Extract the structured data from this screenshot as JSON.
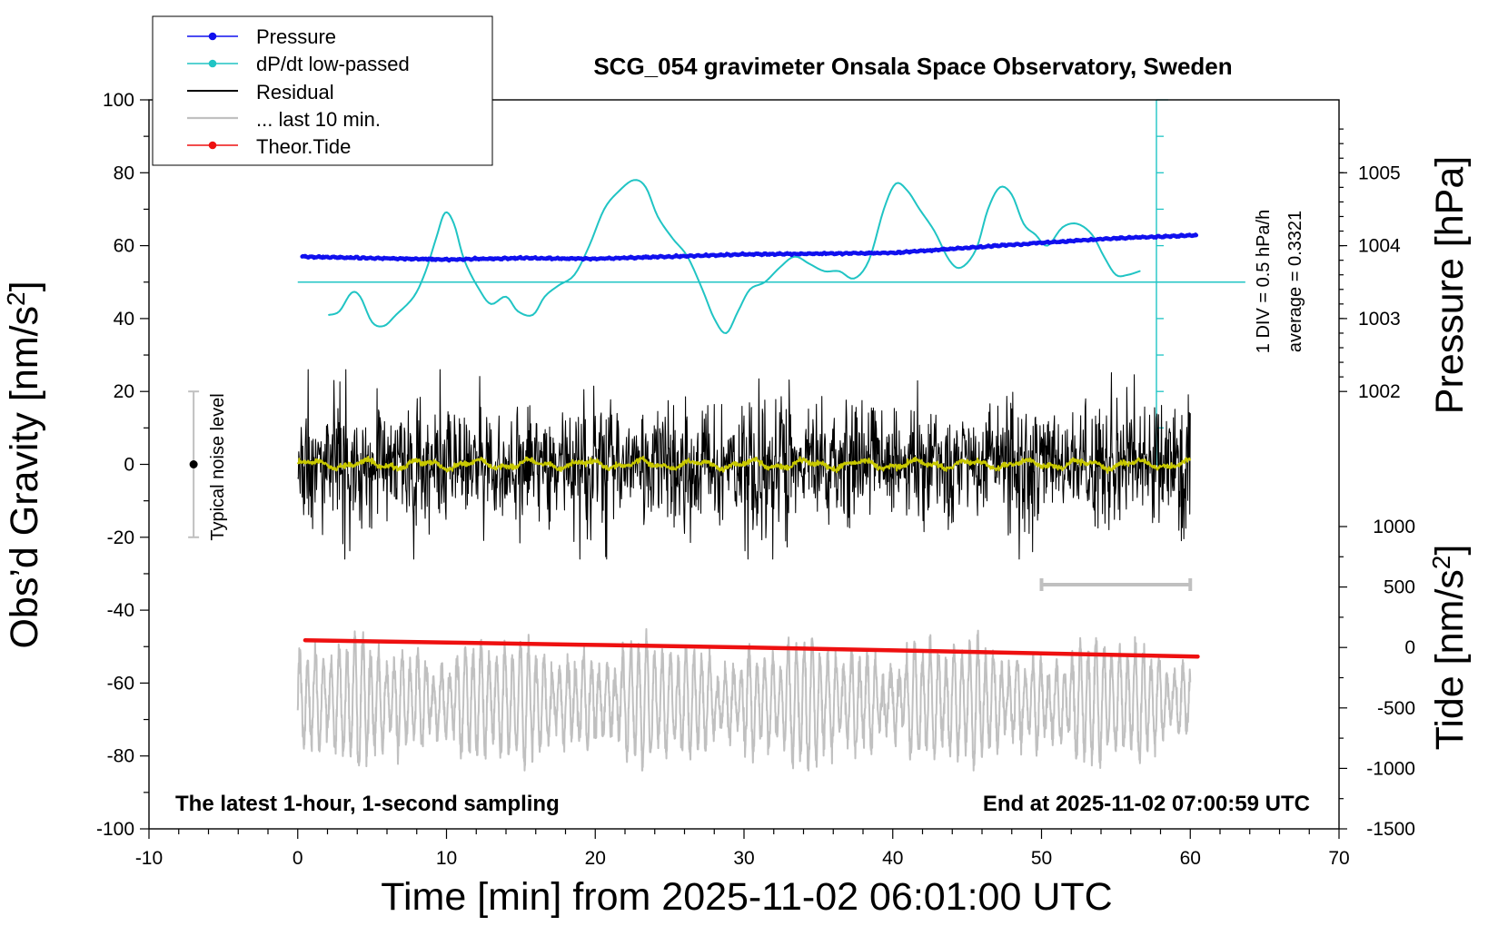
{
  "chart_data": {
    "type": "line",
    "title": "SCG_054 gravimeter Onsala Space Observatory, Sweden",
    "xlabel": "Time [min] from 2025-11-02 06:01:00 UTC",
    "ylabel_left": "Obs’d Gravity [nm/s²]",
    "ylabel_pressure": "Pressure [hPa]",
    "ylabel_tide": "Tide [nm/s²]",
    "x_range": [
      -10,
      70
    ],
    "x_ticks": [
      -10,
      0,
      10,
      20,
      30,
      40,
      50,
      60,
      70
    ],
    "gravity_range": [
      -100,
      100
    ],
    "gravity_ticks": [
      -100,
      -80,
      -60,
      -40,
      -20,
      0,
      20,
      40,
      60,
      80,
      100
    ],
    "pressure_ticks": [
      1002,
      1003,
      1004,
      1005
    ],
    "tide_range": [
      -1500,
      1000
    ],
    "tide_ticks": [
      -1500,
      -1000,
      -500,
      0,
      500,
      1000
    ],
    "footer_left": "The latest 1-hour, 1-second sampling",
    "footer_right": "End at 2025-11-02 07:00:59 UTC",
    "noise_label": "Typical noise level",
    "noise_range": [
      -20,
      20
    ],
    "dpdt_labels": [
      "1 DIV = 0.5 hPa/h",
      "average = 0.3321"
    ],
    "legend": {
      "pressure": "Pressure",
      "dpdt": "dP/dt low-passed",
      "residual": "Residual",
      "last10": "... last 10 min.",
      "tide": "Theor.Tide"
    },
    "colors": {
      "pressure": "#1010ee",
      "dpdt": "#20c4c4",
      "residual": "#000000",
      "residual_smooth": "#c8c800",
      "last10": "#c0c0c0",
      "tide": "#ee1010",
      "noise": "#c0c0c0"
    },
    "series": {
      "pressure": {
        "name": "Pressure",
        "unit": "hPa",
        "x": [
          0,
          5,
          10,
          15,
          20,
          25,
          30,
          35,
          40,
          45,
          50,
          55,
          60
        ],
        "values": [
          1003.85,
          1003.83,
          1003.81,
          1003.83,
          1003.82,
          1003.85,
          1003.88,
          1003.89,
          1003.9,
          1003.97,
          1004.04,
          1004.1,
          1004.14
        ]
      },
      "dpdt_low_passed": {
        "name": "dP/dt low-passed",
        "gravity_scale_equivalent": [
          [
            2.1,
            41
          ],
          [
            2.8,
            42
          ],
          [
            3.6,
            47
          ],
          [
            4.2,
            46
          ],
          [
            5.0,
            39
          ],
          [
            5.8,
            38
          ],
          [
            6.6,
            41
          ],
          [
            7.8,
            46
          ],
          [
            8.6,
            53
          ],
          [
            9.3,
            62
          ],
          [
            9.9,
            69
          ],
          [
            10.5,
            66
          ],
          [
            11.2,
            56
          ],
          [
            12.2,
            48
          ],
          [
            13.0,
            44
          ],
          [
            14.0,
            46
          ],
          [
            14.8,
            42
          ],
          [
            15.8,
            41
          ],
          [
            16.6,
            46
          ],
          [
            17.5,
            49
          ],
          [
            18.6,
            52
          ],
          [
            19.6,
            60
          ],
          [
            20.6,
            70
          ],
          [
            21.6,
            75
          ],
          [
            22.6,
            78
          ],
          [
            23.4,
            76
          ],
          [
            24.2,
            68
          ],
          [
            25.2,
            62
          ],
          [
            26.2,
            57
          ],
          [
            27.2,
            48
          ],
          [
            28.0,
            40
          ],
          [
            28.8,
            36
          ],
          [
            29.6,
            42
          ],
          [
            30.4,
            48
          ],
          [
            31.4,
            50
          ],
          [
            32.4,
            54
          ],
          [
            33.4,
            57
          ],
          [
            34.4,
            55
          ],
          [
            35.4,
            53
          ],
          [
            36.4,
            53
          ],
          [
            37.4,
            51
          ],
          [
            38.4,
            56
          ],
          [
            39.4,
            70
          ],
          [
            40.2,
            77
          ],
          [
            41.0,
            75
          ],
          [
            41.8,
            70
          ],
          [
            42.8,
            64
          ],
          [
            43.8,
            56
          ],
          [
            44.6,
            54
          ],
          [
            45.6,
            59
          ],
          [
            46.4,
            70
          ],
          [
            47.2,
            76
          ],
          [
            48.0,
            74
          ],
          [
            48.8,
            66
          ],
          [
            49.6,
            63
          ],
          [
            50.4,
            60
          ],
          [
            51.4,
            65
          ],
          [
            52.4,
            66
          ],
          [
            53.4,
            63
          ],
          [
            54.2,
            57
          ],
          [
            55.0,
            52
          ],
          [
            55.8,
            52
          ],
          [
            56.6,
            53
          ]
        ]
      },
      "residual": {
        "name": "Residual",
        "approx_amplitude_nm_s2": 15,
        "approx_extremes_nm_s2": [
          -26,
          26
        ]
      },
      "last_10_min": {
        "name": "... last 10 min.",
        "approx_center_nm_s2": -65,
        "approx_extremes_nm_s2": [
          -84,
          -39
        ]
      },
      "theoretical_tide": {
        "name": "Theor.Tide",
        "unit": "nm/s²",
        "x": [
          0,
          10,
          20,
          30,
          40,
          50,
          60
        ],
        "values": [
          60,
          40,
          20,
          0,
          -25,
          -50,
          -75
        ]
      }
    },
    "last10_indicator": [
      50,
      60
    ],
    "reference_line_gravity": 50,
    "pressure_axis_bar": {
      "x_min": 63,
      "gravity_range": [
        0,
        100
      ]
    },
    "grid": false,
    "legend_position": "top-left"
  }
}
